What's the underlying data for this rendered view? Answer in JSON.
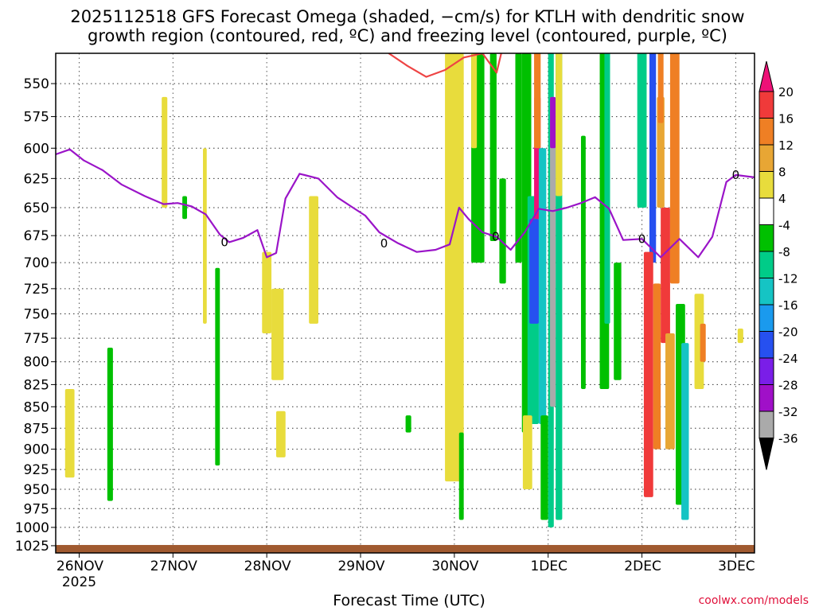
{
  "title": {
    "line1": "2025112518 GFS Forecast Omega (shaded, −cm/s) for KTLH with dendritic snow",
    "line2": "growth region (contoured, red, ºC) and freezing level (contoured, purple, ºC)"
  },
  "footer": {
    "xlabel": "Forecast Time (UTC)",
    "credit": "coolwx.com/models"
  },
  "chart_data": {
    "type": "heatmap",
    "y_axis": {
      "ticks": [
        550,
        575,
        600,
        625,
        650,
        675,
        700,
        725,
        750,
        775,
        800,
        825,
        850,
        875,
        900,
        925,
        950,
        975,
        1000,
        1025
      ],
      "range": [
        1035,
        528
      ]
    },
    "x_axis": {
      "ticks": [
        "26NOV",
        "27NOV",
        "28NOV",
        "29NOV",
        "30NOV",
        "1DEC",
        "2DEC",
        "3DEC"
      ],
      "year_label": "2025",
      "range_days": [
        -0.25,
        7.2
      ]
    },
    "grid": true,
    "colorbar": {
      "levels": [
        20,
        16,
        12,
        8,
        4,
        -4,
        -8,
        -12,
        -16,
        -20,
        -24,
        -28,
        -32,
        -36
      ],
      "colors": [
        "#ee1177",
        "#f03a3a",
        "#ef7f24",
        "#e8a634",
        "#e8dc3c",
        "#ffffff",
        "#00c000",
        "#00cc88",
        "#15c4c4",
        "#1a9aee",
        "#2650f0",
        "#7a1ee8",
        "#a010c8",
        "#aaaaaa",
        "#000000"
      ]
    },
    "series": [
      {
        "name": "freezing level",
        "contour_label": "0",
        "color": "#9a14c8",
        "x": [
          -0.25,
          -0.1,
          0.05,
          0.25,
          0.45,
          0.7,
          0.9,
          1.05,
          1.2,
          1.35,
          1.5,
          1.6,
          1.75,
          1.9,
          2.0,
          2.1,
          2.2,
          2.35,
          2.55,
          2.75,
          2.9,
          3.05,
          3.2,
          3.4,
          3.6,
          3.8,
          3.95,
          4.05,
          4.15,
          4.3,
          4.45,
          4.6,
          4.75,
          4.9,
          5.05,
          5.2,
          5.35,
          5.5,
          5.65,
          5.8,
          6.0,
          6.2,
          6.4,
          6.6,
          6.75,
          6.9,
          7.0,
          7.2
        ],
        "y": [
          605,
          601,
          610,
          618,
          630,
          640,
          647,
          646,
          649,
          656,
          674,
          681,
          677,
          670,
          695,
          691,
          642,
          621,
          625,
          641,
          649,
          657,
          672,
          682,
          690,
          688,
          683,
          650,
          660,
          672,
          676,
          688,
          672,
          651,
          653,
          650,
          646,
          641,
          651,
          679,
          678,
          695,
          678,
          695,
          676,
          628,
          622,
          624
        ]
      },
      {
        "name": "dendritic snow growth region",
        "color": "#ee4444",
        "x": [
          3.3,
          3.5,
          3.7,
          3.9,
          4.1,
          4.3,
          4.45,
          4.5
        ],
        "y": [
          528,
          537,
          545,
          540,
          531,
          528,
          542,
          528
        ]
      }
    ],
    "cells": [
      {
        "x": [
          -0.15,
          -0.05
        ],
        "y": [
          830,
          935
        ],
        "value": 6
      },
      {
        "x": [
          0.3,
          0.36
        ],
        "y": [
          785,
          965
        ],
        "value": -6
      },
      {
        "x": [
          0.88,
          0.94
        ],
        "y": [
          560,
          650
        ],
        "value": 6
      },
      {
        "x": [
          1.1,
          1.15
        ],
        "y": [
          640,
          660
        ],
        "value": -6
      },
      {
        "x": [
          1.32,
          1.36
        ],
        "y": [
          600,
          760
        ],
        "value": 6
      },
      {
        "x": [
          1.45,
          1.5
        ],
        "y": [
          705,
          920
        ],
        "value": -6
      },
      {
        "x": [
          1.95,
          2.05
        ],
        "y": [
          690,
          770
        ],
        "value": 6
      },
      {
        "x": [
          2.05,
          2.18
        ],
        "y": [
          725,
          820
        ],
        "value": 6
      },
      {
        "x": [
          2.1,
          2.2
        ],
        "y": [
          855,
          910
        ],
        "value": 6
      },
      {
        "x": [
          2.45,
          2.55
        ],
        "y": [
          640,
          760
        ],
        "value": 6
      },
      {
        "x": [
          3.9,
          4.1
        ],
        "y": [
          528,
          940
        ],
        "value": 6
      },
      {
        "x": [
          3.48,
          3.54
        ],
        "y": [
          860,
          880
        ],
        "value": -6
      },
      {
        "x": [
          4.05,
          4.1
        ],
        "y": [
          880,
          990
        ],
        "value": -6
      },
      {
        "x": [
          4.18,
          4.32
        ],
        "y": [
          528,
          700
        ],
        "value": -8
      },
      {
        "x": [
          4.18,
          4.24
        ],
        "y": [
          528,
          600
        ],
        "value": 6
      },
      {
        "x": [
          4.38,
          4.45
        ],
        "y": [
          528,
          680
        ],
        "value": -6
      },
      {
        "x": [
          4.48,
          4.55
        ],
        "y": [
          625,
          720
        ],
        "value": -8
      },
      {
        "x": [
          4.65,
          4.72
        ],
        "y": [
          528,
          700
        ],
        "value": -6
      },
      {
        "x": [
          4.72,
          4.82
        ],
        "y": [
          528,
          880
        ],
        "value": -6
      },
      {
        "x": [
          4.78,
          4.9
        ],
        "y": [
          640,
          870
        ],
        "value": -12
      },
      {
        "x": [
          4.8,
          4.9
        ],
        "y": [
          660,
          760
        ],
        "value": -24
      },
      {
        "x": [
          4.85,
          4.92
        ],
        "y": [
          560,
          660
        ],
        "value": 20
      },
      {
        "x": [
          4.85,
          4.92
        ],
        "y": [
          525,
          600
        ],
        "value": 12
      },
      {
        "x": [
          4.73,
          4.83
        ],
        "y": [
          860,
          950
        ],
        "value": 6
      },
      {
        "x": [
          4.9,
          4.98
        ],
        "y": [
          600,
          870
        ],
        "value": -16
      },
      {
        "x": [
          4.92,
          5.0
        ],
        "y": [
          860,
          990
        ],
        "value": -6
      },
      {
        "x": [
          5.0,
          5.06
        ],
        "y": [
          525,
          1000
        ],
        "value": -12
      },
      {
        "x": [
          5.02,
          5.08
        ],
        "y": [
          560,
          850
        ],
        "value": -36
      },
      {
        "x": [
          5.02,
          5.08
        ],
        "y": [
          560,
          600
        ],
        "value": -32
      },
      {
        "x": [
          5.08,
          5.15
        ],
        "y": [
          525,
          990
        ],
        "value": -12
      },
      {
        "x": [
          5.08,
          5.15
        ],
        "y": [
          525,
          640
        ],
        "value": 4
      },
      {
        "x": [
          5.35,
          5.4
        ],
        "y": [
          590,
          830
        ],
        "value": -6
      },
      {
        "x": [
          5.55,
          5.65
        ],
        "y": [
          525,
          830
        ],
        "value": -6
      },
      {
        "x": [
          5.6,
          5.66
        ],
        "y": [
          525,
          760
        ],
        "value": -12
      },
      {
        "x": [
          5.7,
          5.78
        ],
        "y": [
          700,
          820
        ],
        "value": -6
      },
      {
        "x": [
          5.95,
          6.05
        ],
        "y": [
          525,
          650
        ],
        "value": -12
      },
      {
        "x": [
          6.08,
          6.15
        ],
        "y": [
          525,
          700
        ],
        "value": -24
      },
      {
        "x": [
          6.02,
          6.12
        ],
        "y": [
          690,
          960
        ],
        "value": 16
      },
      {
        "x": [
          6.12,
          6.2
        ],
        "y": [
          720,
          900
        ],
        "value": 12
      },
      {
        "x": [
          6.16,
          6.24
        ],
        "y": [
          560,
          650
        ],
        "value": 8
      },
      {
        "x": [
          6.17,
          6.23
        ],
        "y": [
          525,
          580
        ],
        "value": 12
      },
      {
        "x": [
          6.2,
          6.3
        ],
        "y": [
          650,
          780
        ],
        "value": 16
      },
      {
        "x": [
          6.25,
          6.35
        ],
        "y": [
          770,
          900
        ],
        "value": 8
      },
      {
        "x": [
          6.3,
          6.4
        ],
        "y": [
          525,
          720
        ],
        "value": 12
      },
      {
        "x": [
          6.36,
          6.46
        ],
        "y": [
          740,
          970
        ],
        "value": -8
      },
      {
        "x": [
          6.42,
          6.5
        ],
        "y": [
          780,
          990
        ],
        "value": -16
      },
      {
        "x": [
          6.56,
          6.66
        ],
        "y": [
          730,
          830
        ],
        "value": 6
      },
      {
        "x": [
          6.62,
          6.68
        ],
        "y": [
          760,
          800
        ],
        "value": 12
      },
      {
        "x": [
          7.02,
          7.08
        ],
        "y": [
          765,
          780
        ],
        "value": 6
      }
    ],
    "ground": {
      "color": "#a05a30",
      "pressure_top": 1024
    }
  }
}
